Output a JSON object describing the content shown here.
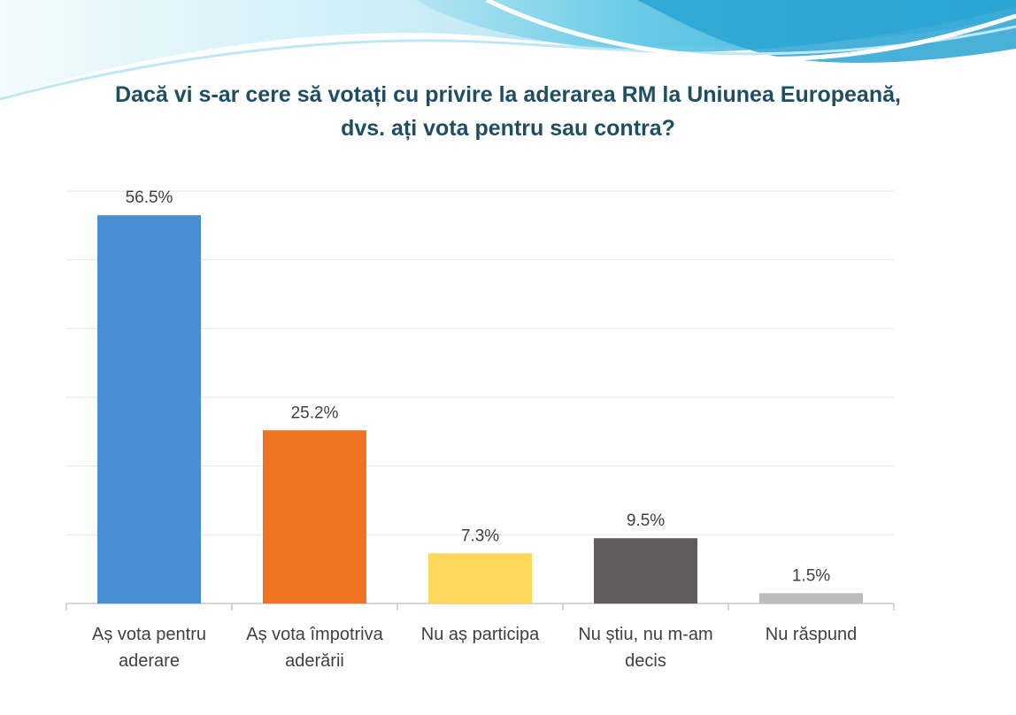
{
  "chart_data": {
    "type": "bar",
    "title_lines": [
      "Dacă vi s-ar cere să votați cu privire la aderarea RM la Uniunea Europeană,",
      "dvs. ați vota pentru sau contra?"
    ],
    "categories": [
      [
        "Aș vota pentru",
        "aderare"
      ],
      [
        "Aș vota împotriva",
        "aderării"
      ],
      [
        "Nu aș participa"
      ],
      [
        "Nu știu, nu m-am",
        "decis"
      ],
      [
        "Nu răspund"
      ]
    ],
    "values": [
      56.5,
      25.2,
      7.3,
      9.5,
      1.5
    ],
    "value_labels": [
      "56.5%",
      "25.2%",
      "7.3%",
      "9.5%",
      "1.5%"
    ],
    "colors": [
      "#4a8fd4",
      "#ee7421",
      "#fdd85a",
      "#5e5c5c",
      "#bbbbbb"
    ],
    "ylim": [
      0,
      60
    ],
    "grid": true,
    "legend": "none"
  }
}
